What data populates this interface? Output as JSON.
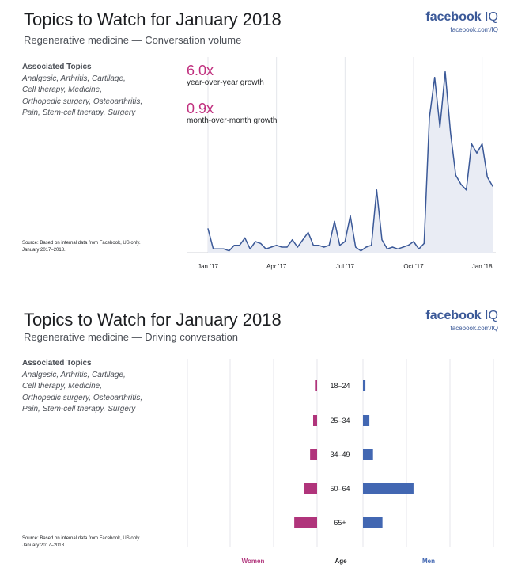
{
  "colors": {
    "accent": "#c02f7e",
    "brand": "#3b5998",
    "line": "#3b5998",
    "area": "#e9ecf4",
    "women": "#b0347b",
    "men": "#4267b2"
  },
  "chart_data": [
    {
      "type": "area",
      "title": "Topics to Watch for January 2018",
      "subtitle": "Regenerative medicine — Conversation volume",
      "brand": {
        "name": "facebook",
        "suffix": "IQ",
        "url": "facebook.com/IQ"
      },
      "associated_title": "Associated Topics",
      "associated_lines": [
        "Analgesic, Arthritis, Cartilage,",
        "Cell therapy, Medicine,",
        "Orthopedic surgery, Osteoarthritis,",
        "Pain, Stem-cell therapy, Surgery"
      ],
      "stats": [
        {
          "value": "6.0x",
          "label": "year-over-year growth"
        },
        {
          "value": "0.9x",
          "label": "month-over-month growth"
        }
      ],
      "source_lines": [
        "Source: Based on internal data from Facebook, US only.",
        "January 2017–2018."
      ],
      "x_ticks": [
        "Jan ’17",
        "Apr ’17",
        "Jul ’17",
        "Oct ’17",
        "Jan ’18"
      ],
      "x_tick_positions": [
        0,
        13,
        26,
        39,
        52
      ],
      "x_range": [
        0,
        55
      ],
      "ylim": [
        0,
        100
      ],
      "grid": "vertical",
      "values": [
        13,
        2,
        2,
        2,
        1,
        4,
        4,
        8,
        2,
        6,
        5,
        2,
        3,
        4,
        3,
        3,
        7,
        3,
        7,
        11,
        4,
        4,
        3,
        4,
        17,
        4,
        6,
        20,
        3,
        1,
        3,
        4,
        34,
        7,
        2,
        3,
        2,
        3,
        4,
        6,
        2,
        5,
        73,
        95,
        68,
        98,
        65,
        42,
        37,
        34,
        59,
        54,
        59,
        41,
        36
      ]
    },
    {
      "type": "bar",
      "orientation": "horizontal",
      "title": "Topics to Watch for January 2018",
      "subtitle": "Regenerative medicine — Driving conversation",
      "brand": {
        "name": "facebook",
        "suffix": "IQ",
        "url": "facebook.com/IQ"
      },
      "associated_title": "Associated Topics",
      "associated_lines": [
        "Analgesic, Arthritis, Cartilage,",
        "Cell therapy, Medicine,",
        "Orthopedic surgery, Osteoarthritis,",
        "Pain, Stem-cell therapy, Surgery"
      ],
      "source_lines": [
        "Source: Based on internal data from Facebook, US only.",
        "January 2017–2018."
      ],
      "categories": [
        "18–24",
        "25–34",
        "34–49",
        "50–64",
        "65+"
      ],
      "series": [
        {
          "name": "Women",
          "values": [
            0.7,
            1.3,
            2.3,
            4.4,
            7.5
          ]
        },
        {
          "name": "Men",
          "values": [
            0.8,
            2.1,
            3.3,
            16.6,
            6.4
          ]
        }
      ],
      "center_label": "Age",
      "xlim": [
        0,
        27
      ],
      "grid": "vertical"
    }
  ]
}
